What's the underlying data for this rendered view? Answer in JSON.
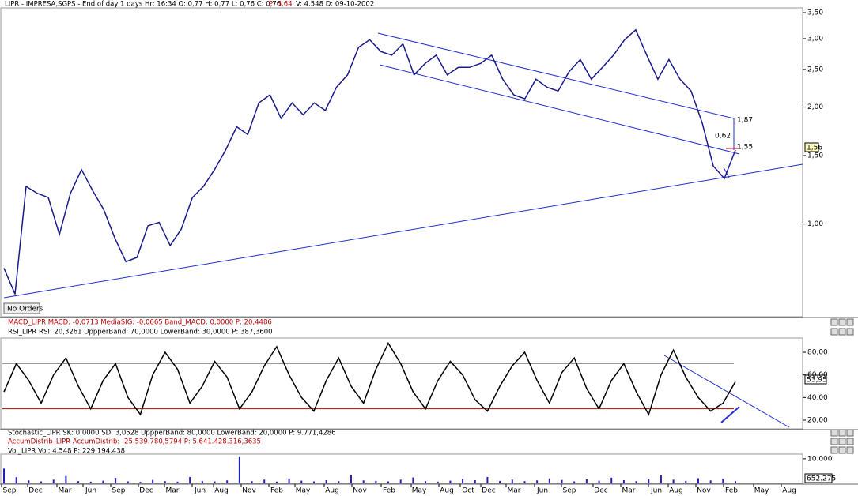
{
  "header": {
    "info": "LIPR - IMPRESA,SGPS - End of day 1 days Hr: 16:34 O: 0,77 H: 0,77 L: 0,76 C: 0,76",
    "p": "P: 3,64",
    "vd": "V: 4.548 D: 09-10-2002"
  },
  "panel_headers": [
    "MACD_LIPR MACD: -0,0713 MediaSIG: -0,0665 Band_MACD: 0,0000 P: 20,4486",
    "RSI_LIPR RSI: 20,3261 UppperBand: 70,0000 LowerBand: 30,0000 P: 387,3600",
    "Stochastic_LIPR SK: 0,0000 SD: 3,0528 UppperBand: 80,0000 LowerBand: 20,0000 P: 9.771,4286",
    "AccumDistrib_LIPR AccumDistrib: -25.539.780,5794 P: 5.641.428.316,3635",
    "Vol_LIPR Vol: 4.548 P: 229.194.438"
  ],
  "annotations": [
    "1,87",
    "0,62",
    "1,55",
    "No Orders",
    "1,56",
    "53,95",
    "652.275"
  ],
  "months": [
    "Sep",
    "Dec",
    "Mar",
    "Jun",
    "Sep",
    "Dec",
    "Mar",
    "Jun",
    "Aug",
    "Nov",
    "Feb",
    "May",
    "Aug",
    "Nov",
    "Feb",
    "May",
    "Aug",
    "Oct",
    "Dec",
    "Mar",
    "Jun",
    "Sep",
    "Dec",
    "Mar",
    "Jun",
    "Aug",
    "Nov",
    "Feb",
    "May",
    "Aug"
  ],
  "chart_data": [
    {
      "type": "line",
      "log_scale": true,
      "color": "#1a1a8c",
      "ylim": [
        0.58,
        3.6
      ],
      "yticks": [
        {
          "value": 3.5,
          "label": "3,50"
        },
        {
          "value": 3,
          "label": "3,00"
        },
        {
          "value": 2.5,
          "label": "2,50"
        },
        {
          "value": 2,
          "label": "2,00"
        },
        {
          "value": 1.5,
          "label": "1,50"
        },
        {
          "value": 1,
          "label": "1,00"
        }
      ],
      "values": [
        0.77,
        0.66,
        1.25,
        1.2,
        1.17,
        0.94,
        1.2,
        1.38,
        1.22,
        1.09,
        0.92,
        0.8,
        0.82,
        0.99,
        1.01,
        0.88,
        0.97,
        1.17,
        1.25,
        1.38,
        1.55,
        1.78,
        1.7,
        2.05,
        2.15,
        1.87,
        2.05,
        1.91,
        2.05,
        1.96,
        2.25,
        2.42,
        2.85,
        2.98,
        2.78,
        2.72,
        2.91,
        2.42,
        2.59,
        2.72,
        2.42,
        2.53,
        2.53,
        2.59,
        2.72,
        2.36,
        2.15,
        2.1,
        2.36,
        2.25,
        2.2,
        2.47,
        2.65,
        2.36,
        2.53,
        2.72,
        2.98,
        3.16,
        2.72,
        2.36,
        2.65,
        2.36,
        2.2,
        1.82,
        1.41,
        1.31,
        1.55
      ]
    },
    {
      "type": "line",
      "color": "#000000",
      "bands": [
        70,
        30
      ],
      "ylim": [
        12.3,
        92.6
      ],
      "yticks": [
        {
          "value": 80,
          "label": "80,00"
        },
        {
          "value": 60,
          "label": "60,00"
        },
        {
          "value": 40,
          "label": "40,00"
        },
        {
          "value": 20,
          "label": "20,00"
        }
      ],
      "values": [
        45,
        70,
        55,
        35,
        60,
        75,
        50,
        30,
        55,
        70,
        40,
        25,
        60,
        80,
        65,
        35,
        50,
        72,
        58,
        30,
        45,
        68,
        85,
        60,
        40,
        28,
        55,
        75,
        50,
        35,
        65,
        88,
        70,
        45,
        30,
        55,
        72,
        60,
        38,
        28,
        50,
        68,
        80,
        55,
        35,
        62,
        75,
        48,
        30,
        55,
        70,
        45,
        25,
        60,
        82,
        58,
        40,
        28,
        35,
        54
      ]
    },
    {
      "type": "bar",
      "color": "#2020c0",
      "ylim": [
        0,
        11900
      ],
      "yticks": [
        {
          "value": 10000,
          "label": "10.000"
        }
      ],
      "values": [
        6000,
        2500,
        1200,
        800,
        1500,
        3000,
        900,
        700,
        1100,
        2200,
        800,
        600,
        1400,
        900,
        700,
        2600,
        1000,
        800,
        1200,
        11000,
        900,
        1500,
        700,
        2000,
        1100,
        800,
        1300,
        900,
        3500,
        1200,
        1000,
        800,
        1500,
        2400,
        900,
        700,
        1100,
        1800,
        1300,
        2600,
        1000,
        1500,
        900,
        1200,
        2000,
        1400,
        800,
        1600,
        1100,
        2300,
        1300,
        900,
        1700,
        3200,
        1500,
        1000,
        2100,
        1200,
        1800,
        900
      ]
    }
  ]
}
